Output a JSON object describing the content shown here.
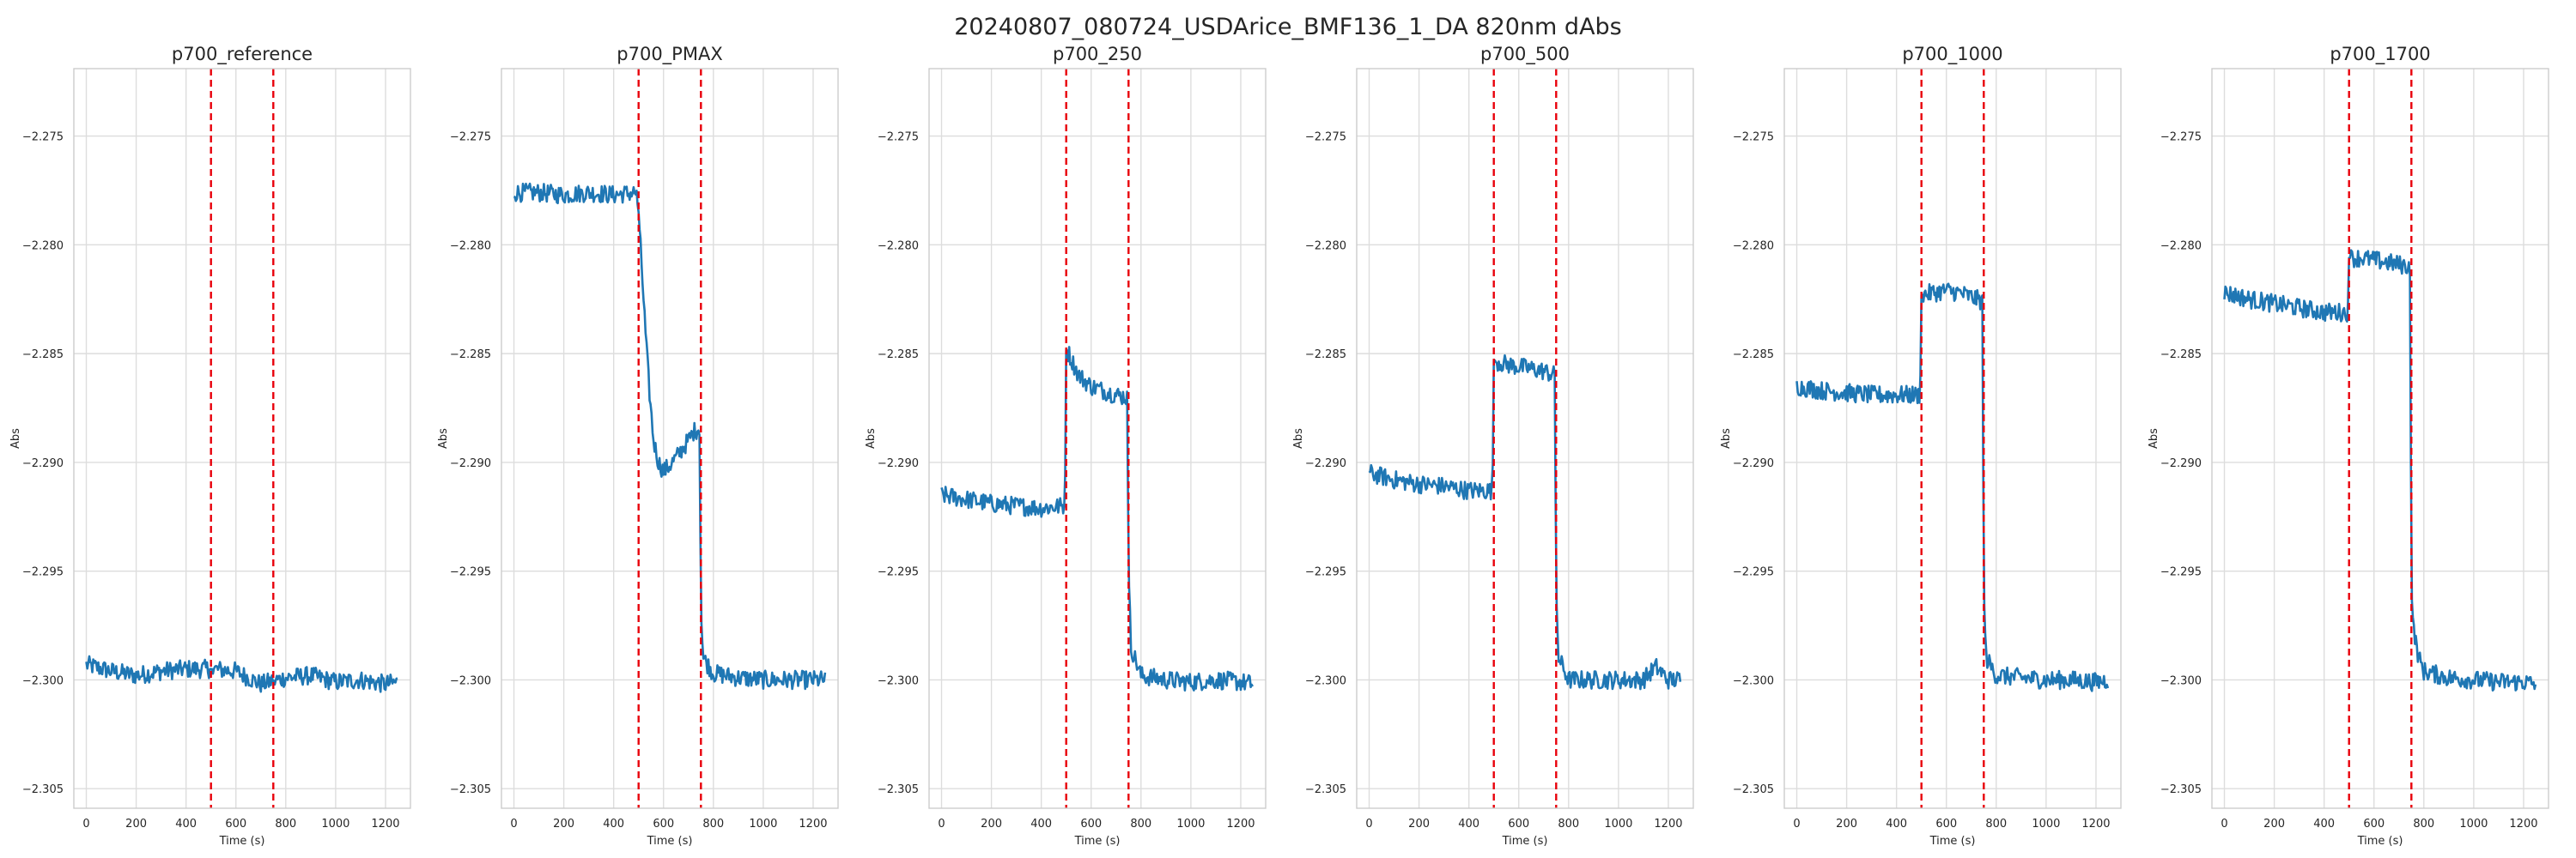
{
  "figure": {
    "title": "20240807_080724_USDArice_BMF136_1_DA 820nm dAbs",
    "colors": {
      "series": "#1f77b4",
      "marker_lines": "#e8000b",
      "grid": "#dddddd"
    }
  },
  "chart_data": [
    {
      "type": "line",
      "title": "p700_reference",
      "xlabel": "Time (s)",
      "ylabel": "Abs",
      "xlim": [
        -50,
        1300
      ],
      "ylim": [
        -2.3059,
        -2.2719
      ],
      "xticks": [
        0,
        200,
        400,
        600,
        800,
        1000,
        1200
      ],
      "yticks": [
        -2.305,
        -2.3,
        -2.295,
        -2.29,
        -2.285,
        -2.28,
        -2.275
      ],
      "ytick_labels": [
        "−2.305",
        "−2.300",
        "−2.295",
        "−2.290",
        "−2.285",
        "−2.280",
        "−2.275"
      ],
      "grid": true,
      "vlines": [
        500,
        750
      ],
      "series": [
        {
          "x": [
            0,
            100,
            200,
            300,
            400,
            500,
            600,
            700,
            800,
            900,
            1000,
            1100,
            1200,
            1250
          ],
          "y": [
            -2.2993,
            -2.2996,
            -2.2998,
            -2.2996,
            -2.2995,
            -2.2995,
            -2.2996,
            -2.3002,
            -2.2999,
            -2.2998,
            -2.3001,
            -2.3,
            -2.3002,
            -2.3001
          ]
        }
      ]
    },
    {
      "type": "line",
      "title": "p700_PMAX",
      "xlabel": "Time (s)",
      "ylabel": "Abs",
      "xlim": [
        -50,
        1300
      ],
      "ylim": [
        -2.3059,
        -2.2719
      ],
      "xticks": [
        0,
        200,
        400,
        600,
        800,
        1000,
        1200
      ],
      "yticks": [
        -2.305,
        -2.3,
        -2.295,
        -2.29,
        -2.285,
        -2.28,
        -2.275
      ],
      "ytick_labels": [
        "−2.305",
        "−2.300",
        "−2.295",
        "−2.290",
        "−2.285",
        "−2.280",
        "−2.275"
      ],
      "grid": true,
      "vlines": [
        500,
        750
      ],
      "series": [
        {
          "x": [
            0,
            100,
            200,
            300,
            400,
            490,
            500,
            515,
            530,
            545,
            560,
            580,
            600,
            620,
            650,
            680,
            700,
            720,
            745,
            750,
            760,
            800,
            900,
            1000,
            1100,
            1200,
            1250
          ],
          "y": [
            -2.2776,
            -2.2776,
            -2.2777,
            -2.2776,
            -2.2777,
            -2.2776,
            -2.2785,
            -2.2815,
            -2.2845,
            -2.287,
            -2.289,
            -2.29,
            -2.2904,
            -2.2902,
            -2.2898,
            -2.2893,
            -2.289,
            -2.2886,
            -2.2884,
            -2.297,
            -2.299,
            -2.2997,
            -2.2999,
            -2.3,
            -2.3,
            -2.3,
            -2.3
          ]
        }
      ]
    },
    {
      "type": "line",
      "title": "p700_250",
      "xlabel": "Time (s)",
      "ylabel": "Abs",
      "xlim": [
        -50,
        1300
      ],
      "ylim": [
        -2.3059,
        -2.2719
      ],
      "xticks": [
        0,
        200,
        400,
        600,
        800,
        1000,
        1200
      ],
      "yticks": [
        -2.305,
        -2.3,
        -2.295,
        -2.29,
        -2.285,
        -2.28,
        -2.275
      ],
      "ytick_labels": [
        "−2.305",
        "−2.300",
        "−2.295",
        "−2.290",
        "−2.285",
        "−2.280",
        "−2.275"
      ],
      "grid": true,
      "vlines": [
        500,
        750
      ],
      "series": [
        {
          "x": [
            0,
            100,
            200,
            300,
            400,
            495,
            500,
            510,
            550,
            600,
            650,
            700,
            745,
            750,
            760,
            800,
            900,
            1000,
            1100,
            1200,
            1250
          ],
          "y": [
            -2.2915,
            -2.2917,
            -2.2919,
            -2.292,
            -2.2921,
            -2.292,
            -2.2848,
            -2.285,
            -2.286,
            -2.2865,
            -2.2867,
            -2.2869,
            -2.287,
            -2.295,
            -2.2985,
            -2.2998,
            -2.3,
            -2.3001,
            -2.3,
            -2.3001,
            -2.3002
          ]
        }
      ]
    },
    {
      "type": "line",
      "title": "p700_500",
      "xlabel": "Time (s)",
      "ylabel": "Abs",
      "xlim": [
        -50,
        1300
      ],
      "ylim": [
        -2.3059,
        -2.2719
      ],
      "xticks": [
        0,
        200,
        400,
        600,
        800,
        1000,
        1200
      ],
      "yticks": [
        -2.305,
        -2.3,
        -2.295,
        -2.29,
        -2.285,
        -2.28,
        -2.275
      ],
      "ytick_labels": [
        "−2.305",
        "−2.300",
        "−2.295",
        "−2.290",
        "−2.285",
        "−2.280",
        "−2.275"
      ],
      "grid": true,
      "vlines": [
        500,
        750
      ],
      "series": [
        {
          "x": [
            0,
            100,
            200,
            300,
            400,
            495,
            500,
            550,
            600,
            650,
            700,
            745,
            750,
            760,
            800,
            900,
            1000,
            1100,
            1150,
            1200,
            1250
          ],
          "y": [
            -2.2905,
            -2.2908,
            -2.291,
            -2.2911,
            -2.2913,
            -2.2913,
            -2.2853,
            -2.2855,
            -2.2856,
            -2.2857,
            -2.2858,
            -2.286,
            -2.296,
            -2.299,
            -2.3,
            -2.3,
            -2.3,
            -2.3,
            -2.2994,
            -2.3,
            -2.3
          ]
        }
      ]
    },
    {
      "type": "line",
      "title": "p700_1000",
      "xlabel": "Time (s)",
      "ylabel": "Abs",
      "xlim": [
        -50,
        1300
      ],
      "ylim": [
        -2.3059,
        -2.2719
      ],
      "xticks": [
        0,
        200,
        400,
        600,
        800,
        1000,
        1200
      ],
      "yticks": [
        -2.305,
        -2.3,
        -2.295,
        -2.29,
        -2.285,
        -2.28,
        -2.275
      ],
      "ytick_labels": [
        "−2.305",
        "−2.300",
        "−2.295",
        "−2.290",
        "−2.285",
        "−2.280",
        "−2.275"
      ],
      "grid": true,
      "vlines": [
        500,
        750
      ],
      "series": [
        {
          "x": [
            0,
            100,
            200,
            300,
            400,
            495,
            500,
            550,
            600,
            650,
            700,
            745,
            750,
            760,
            800,
            900,
            1000,
            1100,
            1200,
            1250
          ],
          "y": [
            -2.2865,
            -2.2867,
            -2.2868,
            -2.2869,
            -2.2869,
            -2.2869,
            -2.2823,
            -2.2822,
            -2.2821,
            -2.2822,
            -2.2824,
            -2.2826,
            -2.296,
            -2.299,
            -2.2998,
            -2.2999,
            -2.3,
            -2.3,
            -2.3001,
            -2.3
          ]
        }
      ]
    },
    {
      "type": "line",
      "title": "p700_1700",
      "xlabel": "Time (s)",
      "ylabel": "Abs",
      "xlim": [
        -50,
        1300
      ],
      "ylim": [
        -2.3059,
        -2.2719
      ],
      "xticks": [
        0,
        200,
        400,
        600,
        800,
        1000,
        1200
      ],
      "yticks": [
        -2.305,
        -2.3,
        -2.295,
        -2.29,
        -2.285,
        -2.28,
        -2.275
      ],
      "ytick_labels": [
        "−2.305",
        "−2.300",
        "−2.295",
        "−2.290",
        "−2.285",
        "−2.280",
        "−2.275"
      ],
      "grid": true,
      "vlines": [
        500,
        750
      ],
      "series": [
        {
          "x": [
            0,
            100,
            200,
            300,
            400,
            495,
            500,
            550,
            600,
            650,
            700,
            745,
            750,
            760,
            780,
            800,
            900,
            1000,
            1100,
            1200,
            1250
          ],
          "y": [
            -2.2822,
            -2.2825,
            -2.2827,
            -2.2829,
            -2.2831,
            -2.2831,
            -2.2806,
            -2.2806,
            -2.2807,
            -2.2808,
            -2.2809,
            -2.281,
            -2.296,
            -2.2978,
            -2.299,
            -2.2996,
            -2.2999,
            -2.3,
            -2.3001,
            -2.3001,
            -2.3002
          ]
        }
      ]
    }
  ]
}
